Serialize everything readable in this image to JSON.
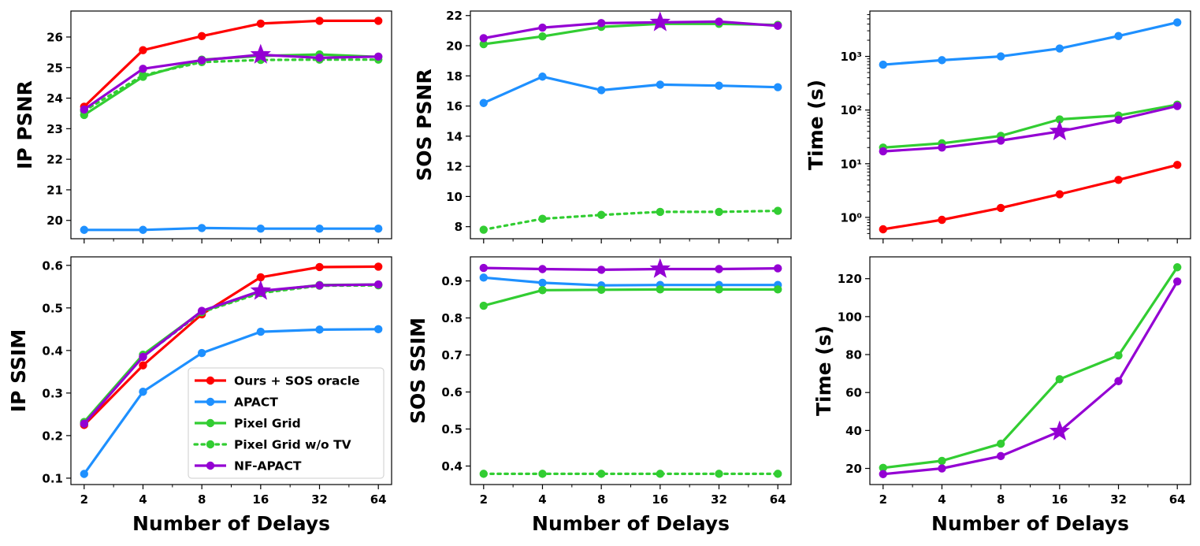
{
  "colors": {
    "ours": "#ff0000",
    "apact": "#1e90ff",
    "pixel_grid": "#32cd32",
    "pixel_grid_no_tv": "#32cd32",
    "nf_apact": "#9400d3"
  },
  "x_label": "Number of Delays",
  "legend": [
    {
      "key": "ours",
      "label": "Ours + SOS oracle",
      "style": "solid"
    },
    {
      "key": "apact",
      "label": "APACT",
      "style": "solid"
    },
    {
      "key": "pixel_grid",
      "label": "Pixel Grid",
      "style": "solid"
    },
    {
      "key": "pixel_grid_no_tv",
      "label": "Pixel Grid w/o TV",
      "style": "dotted"
    },
    {
      "key": "nf_apact",
      "label": "NF-APACT",
      "style": "solid"
    }
  ],
  "chart_data": [
    {
      "id": "ip-psnr",
      "type": "line",
      "ylabel": "IP PSNR",
      "xlabel": "",
      "x": [
        2,
        4,
        8,
        16,
        32,
        64
      ],
      "x_scale": "log2",
      "x_tick_labels": [
        "2",
        "4",
        "8",
        "16",
        "32",
        "64"
      ],
      "ylim": [
        19.4,
        26.85
      ],
      "yticks": [
        20,
        21,
        22,
        23,
        24,
        25,
        26
      ],
      "y_tick_labels": [
        "20",
        "21",
        "22",
        "23",
        "24",
        "25",
        "26"
      ],
      "star_at_x": 16,
      "series": [
        {
          "key": "ours",
          "values": [
            23.72,
            25.57,
            26.03,
            26.44,
            26.53,
            26.53
          ]
        },
        {
          "key": "apact",
          "values": [
            19.69,
            19.69,
            19.75,
            19.73,
            19.73,
            19.73
          ]
        },
        {
          "key": "pixel_grid",
          "values": [
            23.45,
            24.7,
            25.26,
            25.38,
            25.43,
            25.35
          ]
        },
        {
          "key": "pixel_grid_no_tv",
          "values": [
            23.58,
            24.75,
            25.18,
            25.25,
            25.26,
            25.26
          ]
        },
        {
          "key": "nf_apact",
          "values": [
            23.63,
            24.96,
            25.24,
            25.42,
            25.32,
            25.36
          ]
        }
      ]
    },
    {
      "id": "sos-psnr",
      "type": "line",
      "ylabel": "SOS PSNR",
      "xlabel": "",
      "x": [
        2,
        4,
        8,
        16,
        32,
        64
      ],
      "x_scale": "log2",
      "x_tick_labels": [
        "2",
        "4",
        "8",
        "16",
        "32",
        "64"
      ],
      "ylim": [
        7.2,
        22.3
      ],
      "yticks": [
        8,
        10,
        12,
        14,
        16,
        18,
        20,
        22
      ],
      "y_tick_labels": [
        "8",
        "10",
        "12",
        "14",
        "16",
        "18",
        "20",
        "22"
      ],
      "star_at_x": 16,
      "series": [
        {
          "key": "apact",
          "values": [
            16.2,
            17.95,
            17.05,
            17.42,
            17.35,
            17.25
          ]
        },
        {
          "key": "pixel_grid",
          "values": [
            20.1,
            20.62,
            21.25,
            21.45,
            21.45,
            21.38
          ]
        },
        {
          "key": "pixel_grid_no_tv",
          "values": [
            7.8,
            8.52,
            8.78,
            8.98,
            8.98,
            9.05
          ]
        },
        {
          "key": "nf_apact",
          "values": [
            20.5,
            21.2,
            21.5,
            21.55,
            21.6,
            21.32
          ]
        }
      ]
    },
    {
      "id": "time-log",
      "type": "line",
      "ylabel": "Time (s)",
      "xlabel": "",
      "x": [
        2,
        4,
        8,
        16,
        32,
        64
      ],
      "x_scale": "log2",
      "x_tick_labels": [
        "2",
        "4",
        "8",
        "16",
        "32",
        "64"
      ],
      "y_scale": "log",
      "ylim": [
        0.4,
        7000
      ],
      "yticks": [
        1,
        10,
        100,
        1000
      ],
      "y_tick_labels": [
        "10⁰",
        "10¹",
        "10²",
        "10³"
      ],
      "star_at_x": 16,
      "series": [
        {
          "key": "ours",
          "values": [
            0.6,
            0.9,
            1.5,
            2.7,
            5.0,
            9.5
          ]
        },
        {
          "key": "apact",
          "values": [
            700,
            850,
            1000,
            1400,
            2400,
            4300
          ]
        },
        {
          "key": "pixel_grid",
          "values": [
            20,
            24,
            33,
            67,
            79,
            126
          ]
        },
        {
          "key": "nf_apact",
          "values": [
            17,
            20,
            27,
            40,
            66,
            119
          ]
        }
      ]
    },
    {
      "id": "ip-ssim",
      "type": "line",
      "ylabel": "IP SSIM",
      "xlabel": "Number of Delays",
      "x": [
        2,
        4,
        8,
        16,
        32,
        64
      ],
      "x_scale": "log2",
      "x_tick_labels": [
        "2",
        "4",
        "8",
        "16",
        "32",
        "64"
      ],
      "ylim": [
        0.085,
        0.62
      ],
      "yticks": [
        0.1,
        0.2,
        0.3,
        0.4,
        0.5,
        0.6
      ],
      "y_tick_labels": [
        "0.1",
        "0.2",
        "0.3",
        "0.4",
        "0.5",
        "0.6"
      ],
      "star_at_x": 16,
      "legend": "lower right",
      "series": [
        {
          "key": "ours",
          "values": [
            0.225,
            0.365,
            0.485,
            0.572,
            0.596,
            0.597
          ]
        },
        {
          "key": "apact",
          "values": [
            0.11,
            0.303,
            0.394,
            0.444,
            0.449,
            0.45
          ]
        },
        {
          "key": "pixel_grid",
          "values": [
            0.232,
            0.39,
            0.492,
            0.538,
            0.554,
            0.555
          ]
        },
        {
          "key": "pixel_grid_no_tv",
          "values": [
            0.228,
            0.386,
            0.49,
            0.535,
            0.552,
            0.553
          ]
        },
        {
          "key": "nf_apact",
          "values": [
            0.228,
            0.385,
            0.493,
            0.54,
            0.553,
            0.555
          ]
        }
      ]
    },
    {
      "id": "sos-ssim",
      "type": "line",
      "ylabel": "SOS SSIM",
      "xlabel": "Number of Delays",
      "x": [
        2,
        4,
        8,
        16,
        32,
        64
      ],
      "x_scale": "log2",
      "x_tick_labels": [
        "2",
        "4",
        "8",
        "16",
        "32",
        "64"
      ],
      "ylim": [
        0.35,
        0.965
      ],
      "yticks": [
        0.4,
        0.5,
        0.6,
        0.7,
        0.8,
        0.9
      ],
      "y_tick_labels": [
        "0.4",
        "0.5",
        "0.6",
        "0.7",
        "0.8",
        "0.9"
      ],
      "star_at_x": 16,
      "series": [
        {
          "key": "apact",
          "values": [
            0.909,
            0.895,
            0.888,
            0.889,
            0.889,
            0.889
          ]
        },
        {
          "key": "pixel_grid",
          "values": [
            0.833,
            0.875,
            0.876,
            0.877,
            0.877,
            0.877
          ]
        },
        {
          "key": "pixel_grid_no_tv",
          "values": [
            0.379,
            0.379,
            0.379,
            0.379,
            0.379,
            0.379
          ]
        },
        {
          "key": "nf_apact",
          "values": [
            0.935,
            0.932,
            0.93,
            0.932,
            0.932,
            0.934
          ]
        }
      ]
    },
    {
      "id": "time-linear",
      "type": "line",
      "ylabel": "Time (s)",
      "xlabel": "Number of Delays",
      "x": [
        2,
        4,
        8,
        16,
        32,
        64
      ],
      "x_scale": "log2",
      "x_tick_labels": [
        "2",
        "4",
        "8",
        "16",
        "32",
        "64"
      ],
      "ylim": [
        11.5,
        131.5
      ],
      "yticks": [
        20,
        40,
        60,
        80,
        100,
        120
      ],
      "y_tick_labels": [
        "20",
        "40",
        "60",
        "80",
        "100",
        "120"
      ],
      "star_at_x": 16,
      "series": [
        {
          "key": "pixel_grid",
          "values": [
            20.3,
            24,
            33,
            67,
            79.5,
            126
          ]
        },
        {
          "key": "nf_apact",
          "values": [
            17,
            20,
            26.5,
            39.5,
            66,
            118.5
          ]
        }
      ]
    }
  ]
}
